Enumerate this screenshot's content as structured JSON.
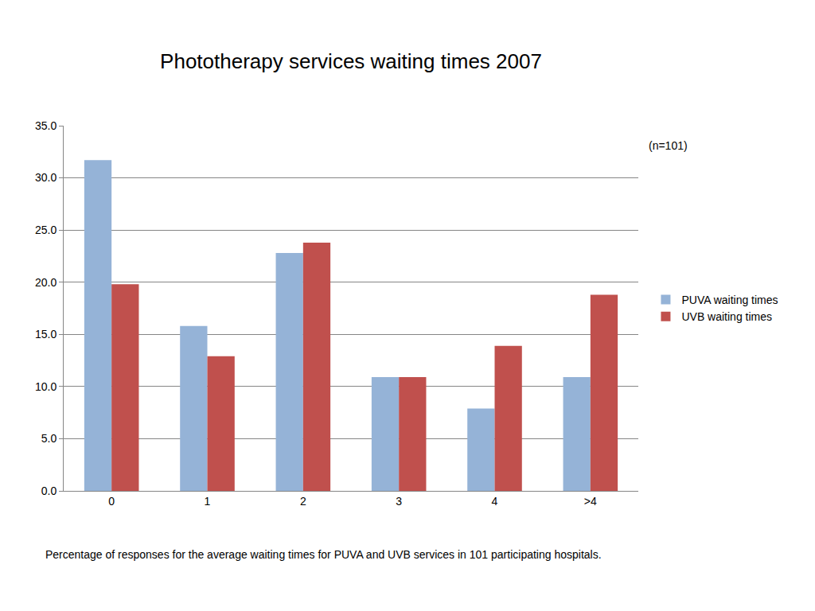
{
  "chart_data": {
    "type": "bar",
    "title": "Phototherapy services waiting times 2007",
    "categories": [
      "0",
      "1",
      "2",
      "3",
      "4",
      ">4"
    ],
    "series": [
      {
        "name": "PUVA waiting times",
        "color": "#95B3D7",
        "values": [
          31.7,
          15.8,
          22.8,
          10.9,
          7.9,
          10.9
        ]
      },
      {
        "name": "UVB waiting times",
        "color": "#C0504D",
        "values": [
          19.8,
          12.9,
          23.8,
          10.9,
          13.9,
          18.8
        ]
      }
    ],
    "ylim": [
      0,
      35
    ],
    "yticks": [
      {
        "value": 0,
        "label": "0.0"
      },
      {
        "value": 5,
        "label": "5.0"
      },
      {
        "value": 10,
        "label": "10.0"
      },
      {
        "value": 15,
        "label": "15.0"
      },
      {
        "value": 20,
        "label": "20.0"
      },
      {
        "value": 25,
        "label": "25.0"
      },
      {
        "value": 30,
        "label": "30.0"
      },
      {
        "value": 35,
        "label": "35.0"
      }
    ],
    "grid": true,
    "legend": "right",
    "annotations": [
      "(n=101)",
      "Percentage of responses for the average waiting times for PUVA and UVB services in 101 participating hospitals."
    ]
  }
}
